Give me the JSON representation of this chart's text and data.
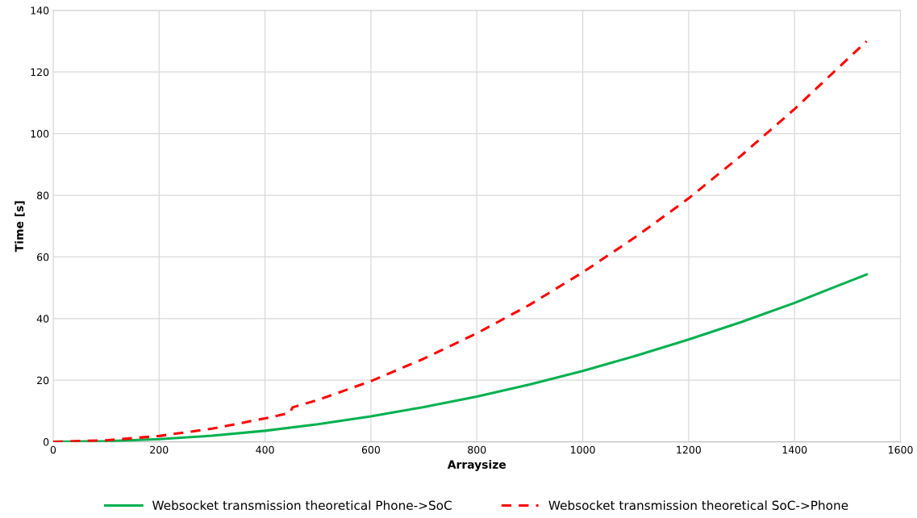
{
  "chart_data": {
    "type": "line",
    "xlabel": "Arraysize",
    "ylabel": "Time [s]",
    "xlim": [
      0,
      1600
    ],
    "xticks": [
      0,
      200,
      400,
      600,
      800,
      1000,
      1200,
      1400,
      1600
    ],
    "ylim": [
      0,
      140
    ],
    "yticks": [
      0,
      20,
      40,
      60,
      80,
      100,
      120,
      140
    ],
    "grid": true,
    "legend": "bottom",
    "marker": "none",
    "series": [
      {
        "name": "Websocket transmission theoretical Phone->SoC",
        "color": "#00b050",
        "line_style": "solid",
        "x": [
          0,
          100,
          200,
          300,
          400,
          500,
          600,
          700,
          800,
          900,
          1000,
          1100,
          1200,
          1300,
          1400,
          1536
        ],
        "values": [
          0,
          0.2,
          0.9,
          2.0,
          3.6,
          5.7,
          8.3,
          11.3,
          14.7,
          18.6,
          23.0,
          27.9,
          33.2,
          38.9,
          45.1,
          54.3
        ]
      },
      {
        "name": "Websocket transmission theoretical SoC->Phone",
        "color": "#ff0000",
        "line_style": "dashed",
        "x": [
          0,
          100,
          200,
          300,
          400,
          447,
          452,
          500,
          600,
          700,
          800,
          900,
          1000,
          1100,
          1200,
          1300,
          1400,
          1536
        ],
        "values": [
          0,
          0.5,
          1.9,
          4.3,
          7.6,
          9.4,
          11.2,
          13.6,
          19.7,
          27.0,
          35.2,
          44.5,
          55.0,
          66.5,
          79.0,
          93.0,
          108.0,
          130.0
        ]
      }
    ]
  }
}
